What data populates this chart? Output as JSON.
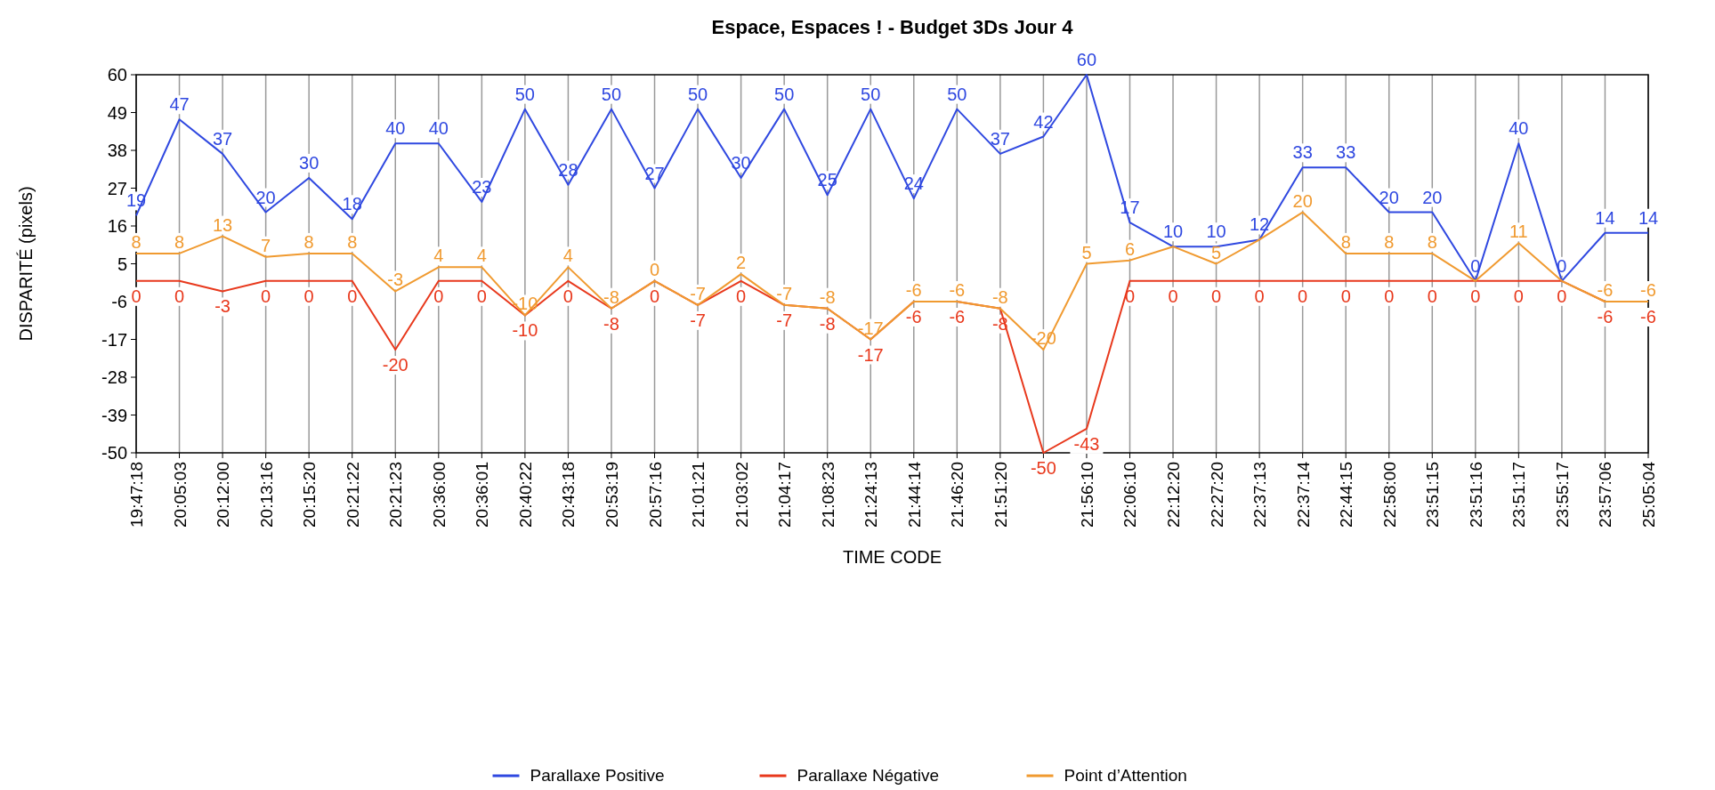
{
  "chart_data": {
    "type": "line",
    "title": "Espace, Espaces ! - Budget 3Ds Jour 4",
    "xlabel": "TIME CODE",
    "ylabel": "DISPARITÉ (pixels)",
    "categories": [
      "19:47:18",
      "20:05:03",
      "20:12:00",
      "20:13:16",
      "20:15:20",
      "20:21:22",
      "20:21:23",
      "20:36:00",
      "20:36:01",
      "20:40:22",
      "20:43:18",
      "20:53:19",
      "20:57:16",
      "21:01:21",
      "21:03:02",
      "21:04:17",
      "21:08:23",
      "21:24:13",
      "21:44:14",
      "21:46:20",
      "21:51:20",
      null,
      "21:56:10",
      "22:06:10",
      "22:12:20",
      "22:27:20",
      "22:37:13",
      "22:37:14",
      "22:44:15",
      "22:58:00",
      "23:51:15",
      "23:51:16",
      "23:51:17",
      "23:55:17",
      "23:57:06",
      "25:05:04"
    ],
    "series": [
      {
        "name": "Parallaxe Positive",
        "color": "#2f48e0",
        "values": [
          19,
          47,
          37,
          20,
          30,
          18,
          40,
          40,
          23,
          50,
          28,
          50,
          27,
          50,
          30,
          50,
          25,
          50,
          24,
          50,
          37,
          42,
          60,
          17,
          10,
          10,
          12,
          33,
          33,
          20,
          20,
          0,
          40,
          0,
          14,
          14
        ],
        "value_labels": [
          "19",
          "47",
          "37",
          "20",
          "30",
          "18",
          "40",
          "40",
          "23",
          "50",
          "28",
          "50",
          "27",
          "50",
          "30",
          "50",
          "25",
          "50",
          "24",
          "50",
          "37",
          "42",
          "60",
          "17",
          "10",
          "10",
          "12",
          "33",
          "33",
          "20",
          "20",
          "0",
          "40",
          "0",
          "14",
          "14"
        ]
      },
      {
        "name": "Parallaxe Négative",
        "color": "#e8381c",
        "values": [
          0,
          0,
          -3,
          0,
          0,
          0,
          -20,
          0,
          0,
          -10,
          0,
          -8,
          0,
          -7,
          0,
          -7,
          -8,
          -17,
          -6,
          -6,
          -8,
          -50,
          -43,
          0,
          0,
          0,
          0,
          0,
          0,
          0,
          0,
          0,
          0,
          0,
          -6,
          -6
        ],
        "value_labels": [
          "0",
          "0",
          "-3",
          "0",
          "0",
          "0",
          "-20",
          "0",
          "0",
          "-10",
          "0",
          "-8",
          "0",
          "-7",
          "0",
          "-7",
          "-8",
          "-17",
          "-6",
          "-6",
          "-8",
          "-50",
          "-43",
          "0",
          "0",
          "0",
          "0",
          "0",
          "0",
          "0",
          "0",
          "0",
          "0",
          "0",
          "-6",
          "-6"
        ]
      },
      {
        "name": "Point d’Attention",
        "color": "#f09a30",
        "values": [
          8,
          8,
          13,
          7,
          8,
          8,
          -3,
          4,
          4,
          -10,
          4,
          -8,
          0,
          -7,
          2,
          -7,
          -8,
          -17,
          -6,
          -6,
          -8,
          -20,
          5,
          6,
          10,
          5,
          12,
          20,
          8,
          8,
          8,
          0,
          11,
          0,
          -6,
          -6
        ],
        "value_labels": [
          "8",
          "8",
          "13",
          "7",
          "8",
          "8",
          "-3",
          "4",
          "4",
          "-10",
          "4",
          "-8",
          "0",
          "-7",
          "2",
          "-7",
          "-8",
          "-17",
          "-6",
          "-6",
          "-8",
          "-20",
          "5",
          "6",
          null,
          "5",
          null,
          "20",
          "8",
          "8",
          "8",
          null,
          "11",
          null,
          "-6",
          "-6"
        ]
      }
    ],
    "ylim": [
      -50,
      60
    ],
    "yticks": [
      -50,
      -39,
      -28,
      -17,
      -6,
      5,
      16,
      27,
      38,
      49,
      60
    ],
    "grid": "x",
    "legend": "bottom",
    "marker": "none",
    "line_style": "solid"
  }
}
